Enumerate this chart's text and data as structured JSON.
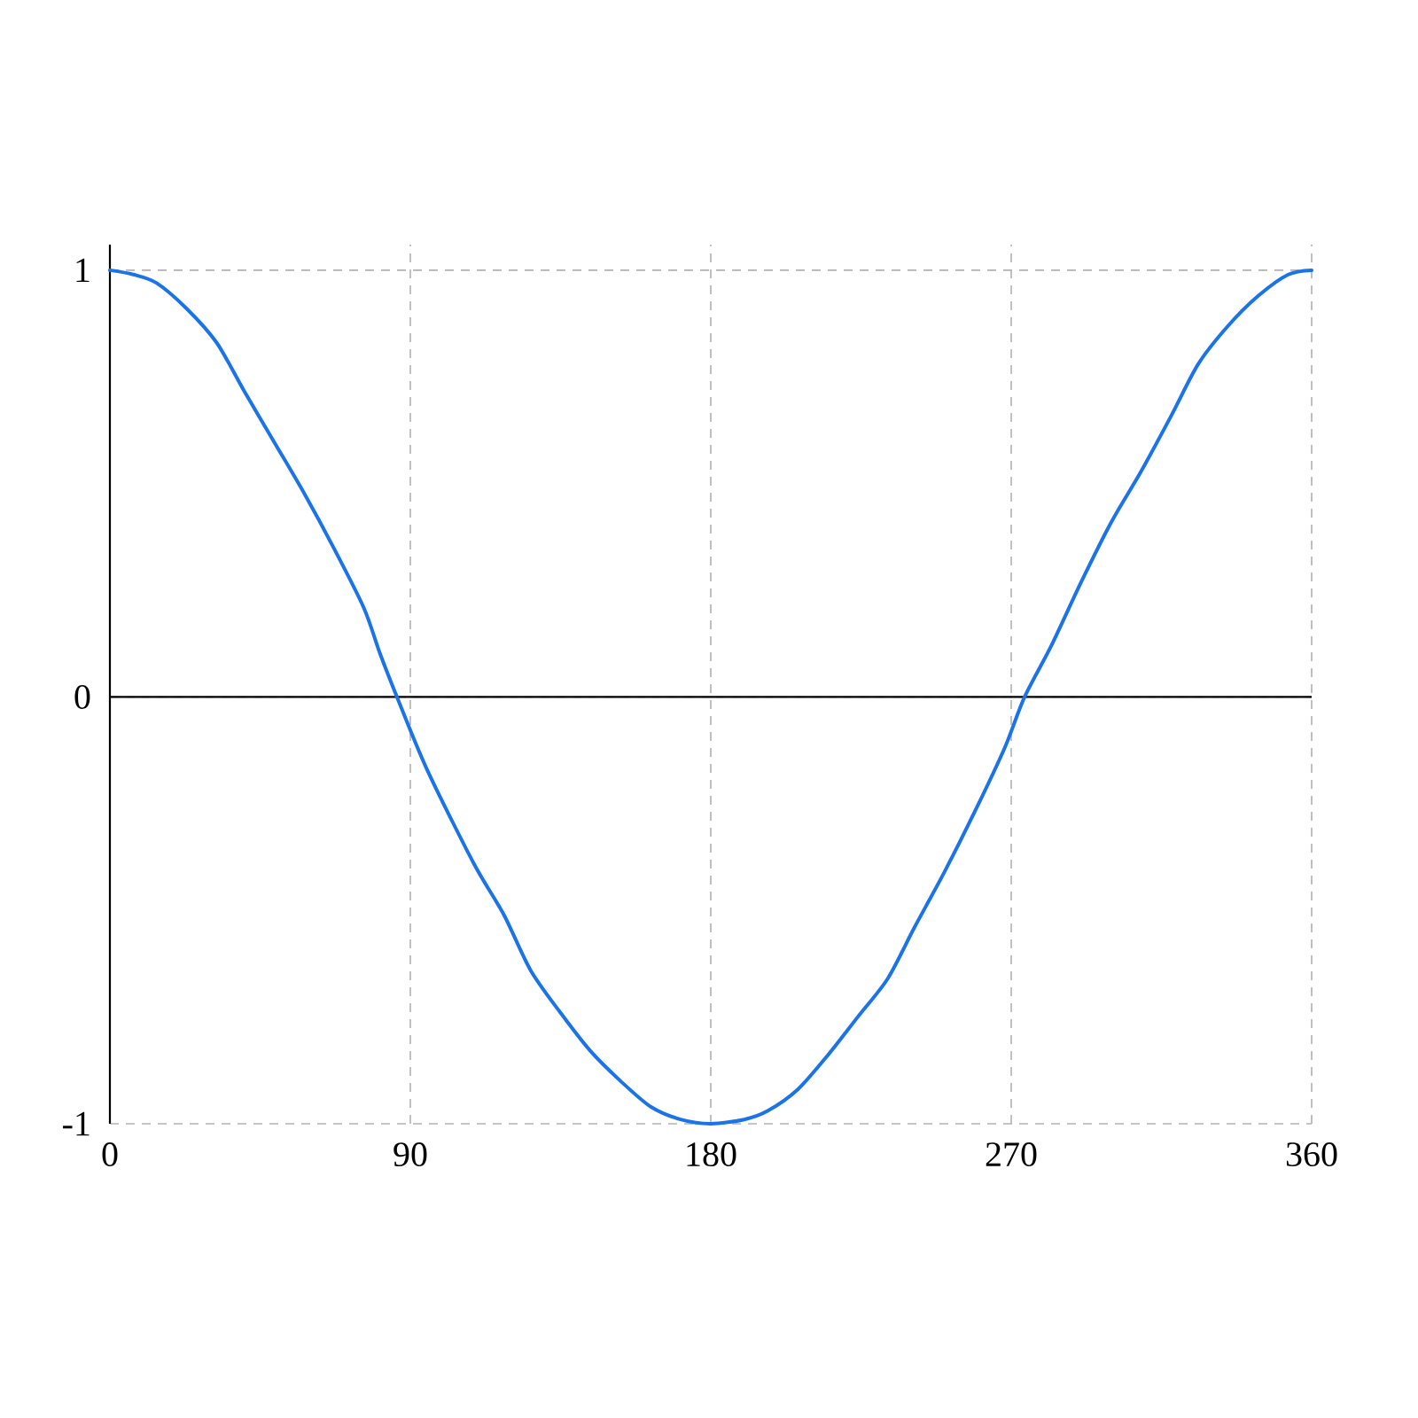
{
  "chart_data": {
    "type": "line",
    "x": [
      0,
      7,
      14,
      23,
      32,
      40,
      49,
      58,
      67,
      76,
      81,
      86,
      95,
      109,
      118,
      126,
      135,
      144,
      153,
      162,
      171,
      180,
      190,
      197,
      206,
      215,
      224,
      233,
      241,
      250,
      259,
      268,
      274,
      282,
      291,
      300,
      309,
      318,
      326,
      335,
      344,
      353,
      360
    ],
    "values": [
      1,
      0.99,
      0.97,
      0.91,
      0.83,
      0.72,
      0.6,
      0.48,
      0.35,
      0.21,
      0.1,
      0,
      -0.17,
      -0.39,
      -0.51,
      -0.64,
      -0.74,
      -0.83,
      -0.9,
      -0.96,
      -0.99,
      -1,
      -0.99,
      -0.97,
      -0.92,
      -0.84,
      -0.75,
      -0.66,
      -0.54,
      -0.41,
      -0.27,
      -0.12,
      0,
      0.12,
      0.27,
      0.41,
      0.53,
      0.66,
      0.78,
      0.87,
      0.94,
      0.99,
      1
    ],
    "color": "#1a73e8",
    "line_style": "solid",
    "xlim": [
      0,
      360
    ],
    "xticks": [
      0,
      90,
      180,
      270,
      360
    ],
    "ylim": [
      -1,
      1.06
    ],
    "yticks": [
      -1,
      0,
      1
    ],
    "grid": true,
    "ref_lines": [
      {
        "axis": "y",
        "value": 0,
        "color": "#000000",
        "line_style": "solid"
      }
    ]
  }
}
